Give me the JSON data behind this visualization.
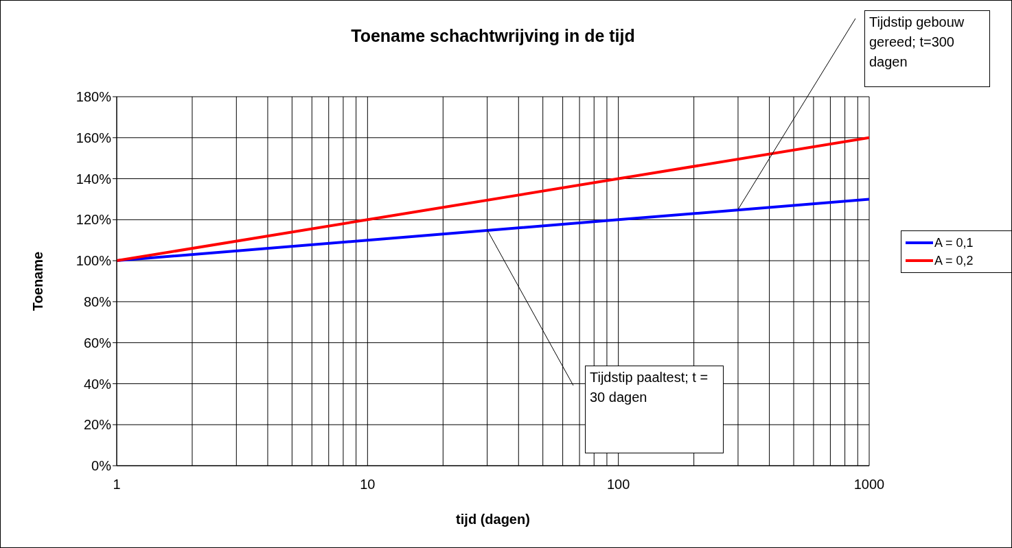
{
  "chart_data": {
    "type": "line",
    "title": "Toename schachtwrijving in de tijd",
    "xlabel": "tijd (dagen)",
    "ylabel": "Toename",
    "x": [
      1,
      10,
      100,
      1000
    ],
    "series": [
      {
        "name": "A = 0,1",
        "color": "#0000ff",
        "values": [
          100,
          110,
          120,
          130
        ]
      },
      {
        "name": "A = 0,2",
        "color": "#ff0000",
        "values": [
          100,
          120,
          140,
          160
        ]
      }
    ],
    "log": "x",
    "xlim": [
      1,
      1000
    ],
    "xticks": [
      1,
      10,
      100,
      1000
    ],
    "ylim": [
      0,
      180
    ],
    "yticks": [
      {
        "value": 0,
        "label": "0%"
      },
      {
        "value": 20,
        "label": "20%"
      },
      {
        "value": 40,
        "label": "40%"
      },
      {
        "value": 60,
        "label": "60%"
      },
      {
        "value": 80,
        "label": "80%"
      },
      {
        "value": 100,
        "label": "100%"
      },
      {
        "value": 120,
        "label": "120%"
      },
      {
        "value": 140,
        "label": "140%"
      },
      {
        "value": 160,
        "label": "160%"
      },
      {
        "value": 180,
        "label": "180%"
      }
    ],
    "grid": true,
    "legend": "right",
    "marker": "none",
    "line_style": "solid",
    "annotations": [
      {
        "text": "Tijdstip paaltest; t = 30 dagen",
        "x": 30,
        "y": 115
      },
      {
        "text": "Tijdstip gebouw gereed; t=300 dagen",
        "x": 300,
        "y": 125
      }
    ]
  }
}
